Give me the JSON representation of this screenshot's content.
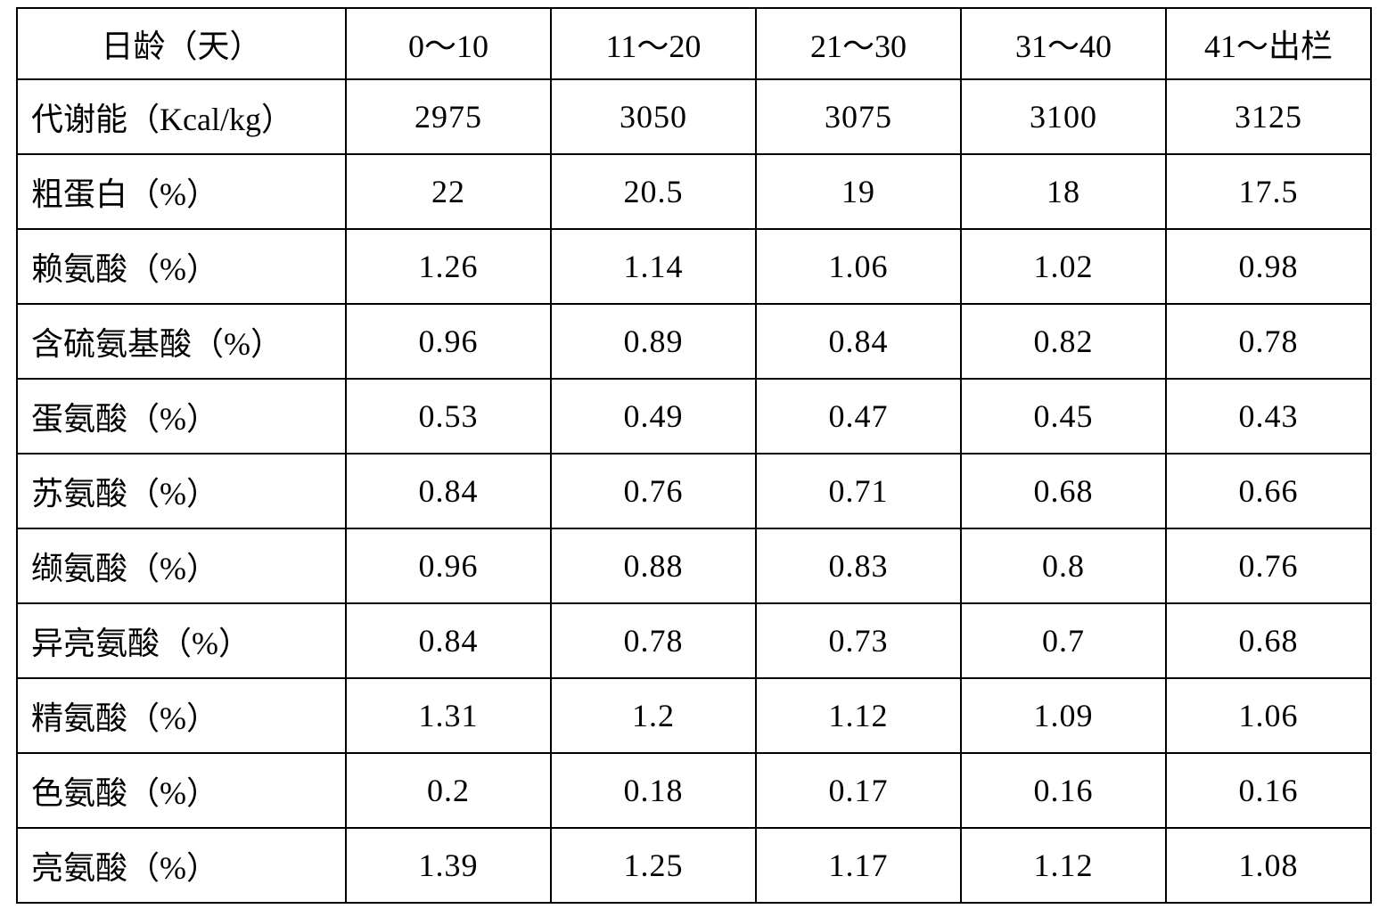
{
  "table": {
    "columns": [
      "日龄（天）",
      "0～10",
      "11～20",
      "21～30",
      "31～40",
      "41～出栏"
    ],
    "rows": [
      {
        "label": "代谢能（Kcal/kg）",
        "values": [
          "2975",
          "3050",
          "3075",
          "3100",
          "3125"
        ]
      },
      {
        "label": "粗蛋白（%）",
        "values": [
          "22",
          "20.5",
          "19",
          "18",
          "17.5"
        ]
      },
      {
        "label": "赖氨酸（%）",
        "values": [
          "1.26",
          "1.14",
          "1.06",
          "1.02",
          "0.98"
        ]
      },
      {
        "label": "含硫氨基酸（%）",
        "values": [
          "0.96",
          "0.89",
          "0.84",
          "0.82",
          "0.78"
        ]
      },
      {
        "label": "蛋氨酸（%）",
        "values": [
          "0.53",
          "0.49",
          "0.47",
          "0.45",
          "0.43"
        ]
      },
      {
        "label": "苏氨酸（%）",
        "values": [
          "0.84",
          "0.76",
          "0.71",
          "0.68",
          "0.66"
        ]
      },
      {
        "label": "缬氨酸（%）",
        "values": [
          "0.96",
          "0.88",
          "0.83",
          "0.8",
          "0.76"
        ]
      },
      {
        "label": "异亮氨酸（%）",
        "values": [
          "0.84",
          "0.78",
          "0.73",
          "0.7",
          "0.68"
        ]
      },
      {
        "label": "精氨酸（%）",
        "values": [
          "1.31",
          "1.2",
          "1.12",
          "1.09",
          "1.06"
        ]
      },
      {
        "label": "色氨酸（%）",
        "values": [
          "0.2",
          "0.18",
          "0.17",
          "0.16",
          "0.16"
        ]
      },
      {
        "label": "亮氨酸（%）",
        "values": [
          "1.39",
          "1.25",
          "1.17",
          "1.12",
          "1.08"
        ]
      }
    ]
  },
  "colors": {
    "border": "#000000",
    "text": "#000000",
    "background": "#ffffff"
  }
}
